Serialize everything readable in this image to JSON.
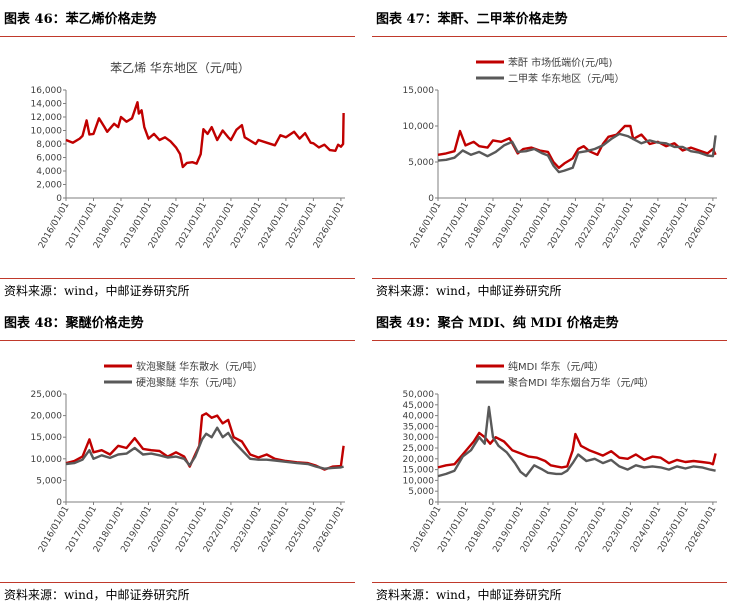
{
  "panels": [
    {
      "title": "图表 46：苯乙烯价格走势",
      "source": "资料来源：wind，中邮证券研究所",
      "chart_data": {
        "type": "line",
        "title": "苯乙烯 华东地区（元/吨）",
        "ylim": [
          0,
          16000
        ],
        "yticks": [
          "0",
          "2,000",
          "4,000",
          "6,000",
          "8,000",
          "10,000",
          "12,000",
          "14,000",
          "16,000"
        ],
        "xlim": [
          2016.0,
          2026.15
        ],
        "xticks": [
          "2016/01/01",
          "2017/01/01",
          "2018/01/01",
          "2019/01/01",
          "2020/01/01",
          "2021/01/01",
          "2022/01/01",
          "2023/01/01",
          "2024/01/01",
          "2025/01/01",
          "2026/01/01"
        ],
        "legend": "none",
        "series": [
          {
            "name": "苯乙烯 华东地区（元/吨）",
            "color": "#c00000",
            "x": [
              2016.0,
              2016.25,
              2016.5,
              2016.6,
              2016.75,
              2016.85,
              2017.0,
              2017.2,
              2017.4,
              2017.5,
              2017.75,
              2017.9,
              2018.0,
              2018.2,
              2018.4,
              2018.6,
              2018.65,
              2018.75,
              2018.85,
              2019.0,
              2019.2,
              2019.4,
              2019.6,
              2019.8,
              2020.0,
              2020.15,
              2020.25,
              2020.4,
              2020.6,
              2020.75,
              2020.9,
              2021.0,
              2021.15,
              2021.3,
              2021.5,
              2021.7,
              2021.9,
              2022.0,
              2022.2,
              2022.4,
              2022.5,
              2022.7,
              2022.9,
              2023.0,
              2023.3,
              2023.6,
              2023.8,
              2024.0,
              2024.3,
              2024.5,
              2024.7,
              2024.9,
              2025.0,
              2025.2,
              2025.4,
              2025.6,
              2025.8,
              2025.9,
              2026.0,
              2026.08,
              2026.1
            ],
            "y": [
              8600,
              8200,
              8800,
              9200,
              11500,
              9400,
              9500,
              11800,
              10500,
              9800,
              11000,
              10500,
              12000,
              11300,
              11800,
              14200,
              12500,
              13000,
              10500,
              8800,
              9500,
              8600,
              9000,
              8400,
              7500,
              6500,
              4600,
              5200,
              5300,
              5100,
              6500,
              10200,
              9500,
              10500,
              8600,
              10000,
              9000,
              8600,
              10100,
              10800,
              9000,
              8500,
              8000,
              8600,
              8200,
              7800,
              9300,
              9000,
              9800,
              8800,
              9600,
              8200,
              8100,
              7500,
              7900,
              7100,
              7000,
              7900,
              7600,
              8000,
              12600
            ]
          }
        ]
      }
    },
    {
      "title": "图表 47：苯酐、二甲苯价格走势",
      "source": "资料来源：wind，中邮证券研究所",
      "chart_data": {
        "type": "line",
        "ylim": [
          0,
          15000
        ],
        "yticks": [
          "0",
          "5,000",
          "10,000",
          "15,000"
        ],
        "xlim": [
          2016.0,
          2026.15
        ],
        "xticks": [
          "2016/01/01",
          "2017/01/01",
          "2018/01/01",
          "2019/01/01",
          "2020/01/01",
          "2021/01/01",
          "2022/01/01",
          "2023/01/01",
          "2024/01/01",
          "2025/01/01",
          "2026/01/01"
        ],
        "legend": "top-center",
        "series": [
          {
            "name": "苯酐 市场低端价(元/吨)",
            "color": "#c00000",
            "x": [
              2016.0,
              2016.3,
              2016.6,
              2016.8,
              2017.0,
              2017.3,
              2017.5,
              2017.8,
              2018.0,
              2018.3,
              2018.6,
              2018.9,
              2019.1,
              2019.4,
              2019.7,
              2020.0,
              2020.2,
              2020.4,
              2020.6,
              2020.9,
              2021.1,
              2021.3,
              2021.5,
              2021.8,
              2022.0,
              2022.2,
              2022.5,
              2022.8,
              2023.0,
              2023.1,
              2023.4,
              2023.7,
              2024.0,
              2024.3,
              2024.6,
              2024.9,
              2025.2,
              2025.5,
              2025.8,
              2026.0,
              2026.1
            ],
            "y": [
              6000,
              6200,
              6500,
              9300,
              7300,
              7800,
              7200,
              7000,
              8000,
              7800,
              8300,
              6200,
              6800,
              7000,
              6600,
              6400,
              5000,
              4200,
              4800,
              5500,
              6800,
              7200,
              6500,
              6000,
              7500,
              8500,
              8800,
              10000,
              10000,
              8200,
              8800,
              7500,
              7800,
              7200,
              7600,
              6600,
              7000,
              6600,
              6200,
              6800,
              6000
            ]
          },
          {
            "name": "二甲苯 华东地区（元/吨）",
            "color": "#595959",
            "x": [
              2016.0,
              2016.3,
              2016.6,
              2016.9,
              2017.2,
              2017.5,
              2017.8,
              2018.1,
              2018.4,
              2018.7,
              2018.9,
              2019.2,
              2019.5,
              2019.8,
              2020.0,
              2020.2,
              2020.4,
              2020.6,
              2020.9,
              2021.1,
              2021.4,
              2021.7,
              2022.0,
              2022.3,
              2022.6,
              2022.9,
              2023.1,
              2023.4,
              2023.7,
              2024.0,
              2024.3,
              2024.6,
              2024.9,
              2025.2,
              2025.5,
              2025.8,
              2026.0,
              2026.1
            ],
            "y": [
              5200,
              5300,
              5600,
              6600,
              6000,
              6400,
              5800,
              6400,
              7300,
              7800,
              6400,
              6500,
              6800,
              6200,
              5900,
              4500,
              3600,
              3800,
              4200,
              6300,
              6500,
              6800,
              7300,
              8200,
              8900,
              8600,
              8200,
              7600,
              8000,
              7700,
              7600,
              7100,
              7100,
              6500,
              6300,
              5900,
              5800,
              8700
            ]
          }
        ]
      }
    },
    {
      "title": "图表 48：聚醚价格走势",
      "source": "资料来源：wind，中邮证券研究所",
      "chart_data": {
        "type": "line",
        "ylim": [
          0,
          25000
        ],
        "yticks": [
          "0",
          "5,000",
          "10,000",
          "15,000",
          "20,000",
          "25,000"
        ],
        "xlim": [
          2016.0,
          2026.15
        ],
        "xticks": [
          "2016/01/01",
          "2017/01/01",
          "2018/01/01",
          "2019/01/01",
          "2020/01/01",
          "2021/01/01",
          "2022/01/01",
          "2023/01/01",
          "2024/01/01",
          "2025/01/01",
          "2026/01/01"
        ],
        "legend": "top-center",
        "series": [
          {
            "name": "软泡聚醚 华东散水（元/吨）",
            "color": "#c00000",
            "x": [
              2016.0,
              2016.3,
              2016.6,
              2016.85,
              2017.0,
              2017.3,
              2017.6,
              2017.9,
              2018.2,
              2018.5,
              2018.8,
              2019.1,
              2019.4,
              2019.7,
              2020.0,
              2020.3,
              2020.5,
              2020.7,
              2020.85,
              2020.95,
              2021.1,
              2021.3,
              2021.5,
              2021.7,
              2021.9,
              2022.1,
              2022.4,
              2022.7,
              2023.0,
              2023.3,
              2023.6,
              2024.0,
              2024.4,
              2024.8,
              2025.1,
              2025.4,
              2025.7,
              2026.0,
              2026.1
            ],
            "y": [
              9000,
              9500,
              10500,
              14500,
              11500,
              12000,
              11000,
              13000,
              12500,
              14800,
              12300,
              12000,
              11800,
              10500,
              11500,
              10500,
              8200,
              11000,
              13000,
              20000,
              20500,
              19500,
              20000,
              18200,
              19000,
              15000,
              14000,
              11000,
              10300,
              11000,
              10000,
              9500,
              9200,
              9000,
              8400,
              7500,
              8200,
              8300,
              13000
            ]
          },
          {
            "name": "硬泡聚醚 华东（元/吨）",
            "color": "#595959",
            "x": [
              2016.0,
              2016.3,
              2016.6,
              2016.85,
              2017.0,
              2017.3,
              2017.6,
              2017.9,
              2018.2,
              2018.5,
              2018.8,
              2019.1,
              2019.4,
              2019.7,
              2020.0,
              2020.3,
              2020.5,
              2020.7,
              2020.95,
              2021.1,
              2021.3,
              2021.5,
              2021.7,
              2021.9,
              2022.1,
              2022.4,
              2022.7,
              2023.0,
              2023.3,
              2023.6,
              2024.0,
              2024.4,
              2024.8,
              2025.1,
              2025.4,
              2025.7,
              2026.0,
              2026.1
            ],
            "y": [
              8800,
              9000,
              9800,
              12000,
              10000,
              10800,
              10200,
              11000,
              11200,
              12500,
              11000,
              11200,
              10800,
              10300,
              10500,
              10000,
              8500,
              10500,
              14500,
              15800,
              15000,
              17200,
              15000,
              16000,
              14000,
              12000,
              10000,
              9800,
              9800,
              9600,
              9300,
              9000,
              8800,
              8200,
              7700,
              7900,
              8000,
              8200
            ]
          }
        ]
      }
    },
    {
      "title": "图表 49：聚合 MDI、纯 MDI 价格走势",
      "source": "资料来源：wind，中邮证券研究所",
      "chart_data": {
        "type": "line",
        "ylim": [
          0,
          50000
        ],
        "yticks": [
          "0",
          "5,000",
          "10,000",
          "15,000",
          "20,000",
          "25,000",
          "30,000",
          "35,000",
          "40,000",
          "45,000",
          "50,000"
        ],
        "xlim": [
          2016.0,
          2026.15
        ],
        "xticks": [
          "2016/01/01",
          "2017/01/01",
          "2018/01/01",
          "2019/01/01",
          "2020/01/01",
          "2021/01/01",
          "2022/01/01",
          "2023/01/01",
          "2024/01/01",
          "2025/01/01",
          "2026/01/01"
        ],
        "legend": "top-center",
        "series": [
          {
            "name": "纯MDI 华东（元/吨）",
            "color": "#c00000",
            "x": [
              2016.0,
              2016.3,
              2016.6,
              2016.9,
              2017.1,
              2017.3,
              2017.5,
              2017.7,
              2017.9,
              2018.1,
              2018.4,
              2018.7,
              2019.0,
              2019.3,
              2019.6,
              2019.9,
              2020.1,
              2020.3,
              2020.5,
              2020.7,
              2020.9,
              2021.0,
              2021.2,
              2021.5,
              2021.8,
              2022.0,
              2022.3,
              2022.6,
              2022.9,
              2023.2,
              2023.5,
              2023.8,
              2024.1,
              2024.4,
              2024.7,
              2025.0,
              2025.3,
              2025.6,
              2025.9,
              2026.0,
              2026.1
            ],
            "y": [
              16000,
              17000,
              17500,
              22000,
              25000,
              28000,
              32000,
              30000,
              27000,
              30000,
              28000,
              24000,
              22500,
              21000,
              20500,
              19000,
              17000,
              16500,
              16000,
              16500,
              24000,
              31500,
              26000,
              24000,
              22500,
              21500,
              23500,
              20500,
              20000,
              22000,
              19500,
              21000,
              20500,
              18000,
              19500,
              18500,
              19000,
              18500,
              18000,
              17500,
              22500
            ]
          },
          {
            "name": "聚合MDI 华东烟台万华（元/吨）",
            "color": "#595959",
            "x": [
              2016.0,
              2016.3,
              2016.6,
              2016.9,
              2017.2,
              2017.5,
              2017.7,
              2017.85,
              2018.0,
              2018.2,
              2018.5,
              2018.8,
              2019.0,
              2019.2,
              2019.5,
              2019.8,
              2020.0,
              2020.3,
              2020.5,
              2020.7,
              2020.9,
              2021.1,
              2021.4,
              2021.7,
              2022.0,
              2022.3,
              2022.6,
              2022.9,
              2023.2,
              2023.5,
              2023.8,
              2024.1,
              2024.4,
              2024.7,
              2025.0,
              2025.3,
              2025.6,
              2025.9,
              2026.1
            ],
            "y": [
              12000,
              13000,
              14500,
              21000,
              24000,
              30000,
              27000,
              44000,
              30000,
              26000,
              23000,
              18000,
              14000,
              12000,
              17000,
              15000,
              13500,
              13000,
              13000,
              14500,
              18000,
              22000,
              19000,
              20000,
              18000,
              19500,
              16500,
              15000,
              17000,
              16000,
              16500,
              16000,
              15000,
              16500,
              15500,
              16500,
              16000,
              15000,
              14500
            ]
          }
        ]
      }
    }
  ]
}
